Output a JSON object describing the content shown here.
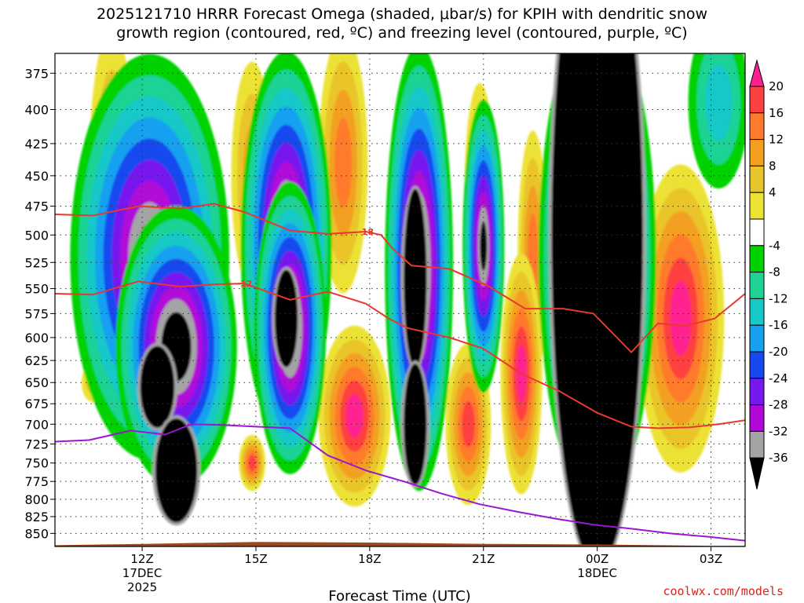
{
  "title": "2025121710 HRRR Forecast Omega (shaded, μbar/s) for KPIH with dendritic snow\ngrowth region (contoured, red, ºC) and freezing level (contoured, purple, ºC)",
  "credit": "coolwx.com/models",
  "chart_data": {
    "type": "heatmap",
    "xlabel": "Forecast Time (UTC)",
    "ylabel": "",
    "x_range_hours": [
      9.7,
      27.9
    ],
    "x_ticks": [
      {
        "hour": 12,
        "label": "12Z",
        "sub1": "17DEC",
        "sub2": "2025"
      },
      {
        "hour": 15,
        "label": "15Z",
        "sub1": "",
        "sub2": ""
      },
      {
        "hour": 18,
        "label": "18Z",
        "sub1": "",
        "sub2": ""
      },
      {
        "hour": 21,
        "label": "21Z",
        "sub1": "",
        "sub2": ""
      },
      {
        "hour": 24,
        "label": "00Z",
        "sub1": "18DEC",
        "sub2": ""
      },
      {
        "hour": 27,
        "label": "03Z",
        "sub1": "",
        "sub2": ""
      }
    ],
    "y_ticks": [
      375,
      400,
      425,
      450,
      475,
      500,
      525,
      550,
      575,
      600,
      625,
      650,
      675,
      700,
      725,
      750,
      775,
      800,
      825,
      850
    ],
    "y_scale": "log-pressure",
    "y_range": [
      362,
      870
    ],
    "grid": true,
    "colorbar": {
      "labels": [
        "20",
        "16",
        "12",
        "8",
        "4",
        "-4",
        "-8",
        "-12",
        "-16",
        "-20",
        "-24",
        "-28",
        "-32",
        "-36"
      ],
      "colors": [
        "#ff2090",
        "#ff4040",
        "#ff7a2c",
        "#f3a020",
        "#e9c52c",
        "#ece236",
        "#ffffff",
        "#00d200",
        "#1ed294",
        "#16c8c8",
        "#18a0f0",
        "#1848f0",
        "#7818f0",
        "#b008d8",
        "#a4a4a4",
        "#000000"
      ]
    },
    "contours": [
      {
        "label": "-18",
        "color": "#e8382e",
        "x": [
          9.7,
          10.7,
          11.9,
          13.0,
          13.9,
          14.7,
          15.9,
          16.9,
          17.9,
          18.3,
          18.6,
          19.1,
          20.1,
          21.1,
          22.1,
          23.1,
          23.9,
          24.9,
          25.6,
          26.3,
          27.1,
          27.9
        ],
        "y": [
          482,
          483,
          475,
          477,
          473,
          480,
          496,
          499,
          497,
          500,
          512,
          528,
          531,
          547,
          570,
          570,
          575,
          616,
          585,
          588,
          580,
          555
        ]
      },
      {
        "label": "-12",
        "color": "#e8382e",
        "x": [
          9.7,
          10.7,
          11.9,
          13.0,
          13.9,
          14.7,
          15.9,
          16.9,
          17.9,
          18.5,
          19.0,
          20.1,
          21.0,
          22.0,
          23.0,
          24.0,
          24.9,
          25.6,
          26.4,
          27.2,
          27.9
        ],
        "y": [
          555,
          556,
          543,
          548,
          546,
          545,
          561,
          553,
          565,
          580,
          590,
          600,
          612,
          640,
          660,
          686,
          703,
          705,
          704,
          700,
          695
        ]
      },
      {
        "label": "",
        "color": "#9a16d2",
        "x": [
          9.7,
          10.6,
          11.7,
          12.6,
          13.3,
          14.1,
          15.0,
          15.9,
          16.9,
          17.9,
          18.9,
          19.9,
          20.9,
          21.9,
          22.9,
          23.9,
          24.9,
          25.9,
          26.9,
          27.9
        ],
        "y": [
          722,
          720,
          708,
          713,
          700,
          701,
          703,
          705,
          740,
          760,
          775,
          792,
          807,
          818,
          828,
          837,
          843,
          850,
          855,
          861
        ]
      }
    ],
    "blobs": [
      {
        "x": 11.2,
        "p": 450,
        "w": 0.6,
        "h": 230,
        "lvl": 3
      },
      {
        "x": 14.9,
        "p": 450,
        "w": 0.55,
        "h": 180,
        "lvl": 3
      },
      {
        "x": 17.3,
        "p": 440,
        "w": 0.65,
        "h": 200,
        "lvl": 4
      },
      {
        "x": 20.9,
        "p": 460,
        "w": 0.4,
        "h": 170,
        "lvl": 4
      },
      {
        "x": 22.3,
        "p": 520,
        "w": 0.4,
        "h": 230,
        "lvl": 4
      },
      {
        "x": 26.2,
        "p": 580,
        "w": 1.15,
        "h": 310,
        "lvl": 6
      },
      {
        "x": 22.0,
        "p": 640,
        "w": 0.55,
        "h": 270,
        "lvl": 6
      },
      {
        "x": 17.6,
        "p": 690,
        "w": 0.95,
        "h": 220,
        "lvl": 6
      },
      {
        "x": 20.6,
        "p": 700,
        "w": 0.6,
        "h": 200,
        "lvl": 5
      },
      {
        "x": 14.9,
        "p": 750,
        "w": 0.35,
        "h": 75,
        "lvl": 5
      },
      {
        "x": 10.7,
        "p": 650,
        "w": 0.3,
        "h": 45,
        "lvl": 2
      },
      {
        "x": 12.2,
        "p": 520,
        "w": 2.1,
        "h": 360,
        "lvl": -9
      },
      {
        "x": 12.9,
        "p": 610,
        "w": 1.6,
        "h": 300,
        "lvl": -10
      },
      {
        "x": 15.8,
        "p": 510,
        "w": 1.2,
        "h": 340,
        "lvl": -10
      },
      {
        "x": 15.9,
        "p": 590,
        "w": 0.95,
        "h": 300,
        "lvl": -10
      },
      {
        "x": 19.3,
        "p": 530,
        "w": 0.9,
        "h": 400,
        "lvl": -10
      },
      {
        "x": 21.0,
        "p": 510,
        "w": 0.55,
        "h": 260,
        "lvl": -9
      },
      {
        "x": 24.0,
        "p": 520,
        "w": 1.55,
        "h": 430,
        "lvl": -10
      },
      {
        "x": 27.2,
        "p": 395,
        "w": 0.8,
        "h": 120,
        "lvl": -3
      }
    ],
    "blacks": [
      {
        "x": 12.4,
        "p": 655,
        "w": 0.45,
        "h": 95
      },
      {
        "x": 12.9,
        "p": 760,
        "w": 0.55,
        "h": 140
      },
      {
        "x": 15.8,
        "p": 580,
        "w": 0.3,
        "h": 100
      },
      {
        "x": 19.2,
        "p": 540,
        "w": 0.3,
        "h": 170
      },
      {
        "x": 19.2,
        "p": 700,
        "w": 0.3,
        "h": 150
      },
      {
        "x": 24.0,
        "p": 500,
        "w": 1.2,
        "h": 530
      }
    ],
    "terrain_color": "#9a4a22"
  }
}
